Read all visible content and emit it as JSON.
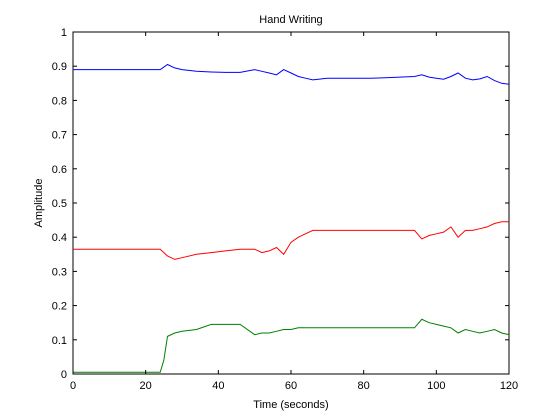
{
  "chart_data": {
    "type": "line",
    "title": "Hand Writing",
    "xlabel": "Time (seconds)",
    "ylabel": "Amplitude",
    "xlim": [
      0,
      120
    ],
    "ylim": [
      0,
      1
    ],
    "x_ticks": [
      0,
      20,
      40,
      60,
      80,
      100,
      120
    ],
    "y_ticks": [
      0,
      0.1,
      0.2,
      0.3,
      0.4,
      0.5,
      0.6,
      0.7,
      0.8,
      0.9,
      1
    ],
    "grid": false,
    "legend": "none",
    "series": [
      {
        "color": "#0000ff",
        "x": [
          0,
          4,
          8,
          12,
          16,
          20,
          24,
          26,
          28,
          30,
          34,
          38,
          42,
          46,
          50,
          52,
          54,
          56,
          58,
          60,
          62,
          64,
          66,
          70,
          74,
          78,
          82,
          86,
          90,
          94,
          96,
          98,
          100,
          102,
          104,
          106,
          108,
          110,
          112,
          114,
          116,
          118,
          120
        ],
        "y": [
          0.89,
          0.89,
          0.89,
          0.89,
          0.89,
          0.89,
          0.89,
          0.905,
          0.895,
          0.89,
          0.885,
          0.883,
          0.882,
          0.882,
          0.89,
          0.885,
          0.88,
          0.875,
          0.89,
          0.88,
          0.87,
          0.865,
          0.86,
          0.865,
          0.865,
          0.865,
          0.865,
          0.866,
          0.868,
          0.87,
          0.875,
          0.868,
          0.865,
          0.862,
          0.87,
          0.88,
          0.865,
          0.86,
          0.863,
          0.87,
          0.858,
          0.85,
          0.847
        ]
      },
      {
        "color": "#ff0000",
        "x": [
          0,
          4,
          8,
          12,
          16,
          20,
          24,
          26,
          28,
          30,
          34,
          38,
          42,
          46,
          50,
          52,
          54,
          56,
          58,
          60,
          62,
          64,
          66,
          70,
          74,
          78,
          82,
          86,
          90,
          94,
          96,
          98,
          100,
          102,
          104,
          106,
          108,
          110,
          112,
          114,
          116,
          118,
          120
        ],
        "y": [
          0.365,
          0.365,
          0.365,
          0.365,
          0.365,
          0.365,
          0.365,
          0.345,
          0.335,
          0.34,
          0.35,
          0.355,
          0.36,
          0.365,
          0.365,
          0.355,
          0.36,
          0.37,
          0.35,
          0.385,
          0.4,
          0.41,
          0.42,
          0.42,
          0.42,
          0.42,
          0.42,
          0.42,
          0.42,
          0.42,
          0.395,
          0.405,
          0.41,
          0.415,
          0.43,
          0.4,
          0.42,
          0.42,
          0.425,
          0.43,
          0.44,
          0.445,
          0.445
        ]
      },
      {
        "color": "#008000",
        "x": [
          0,
          4,
          8,
          12,
          16,
          20,
          24,
          25,
          26,
          28,
          30,
          34,
          38,
          42,
          46,
          50,
          52,
          54,
          56,
          58,
          60,
          62,
          64,
          66,
          70,
          74,
          78,
          82,
          86,
          90,
          94,
          96,
          98,
          100,
          102,
          104,
          106,
          108,
          110,
          112,
          114,
          116,
          118,
          120
        ],
        "y": [
          0.005,
          0.005,
          0.005,
          0.005,
          0.005,
          0.005,
          0.005,
          0.04,
          0.11,
          0.12,
          0.125,
          0.13,
          0.145,
          0.145,
          0.145,
          0.115,
          0.12,
          0.12,
          0.125,
          0.13,
          0.13,
          0.135,
          0.135,
          0.135,
          0.135,
          0.135,
          0.135,
          0.135,
          0.135,
          0.135,
          0.135,
          0.16,
          0.15,
          0.145,
          0.14,
          0.135,
          0.12,
          0.13,
          0.125,
          0.12,
          0.125,
          0.13,
          0.12,
          0.115
        ]
      }
    ]
  }
}
